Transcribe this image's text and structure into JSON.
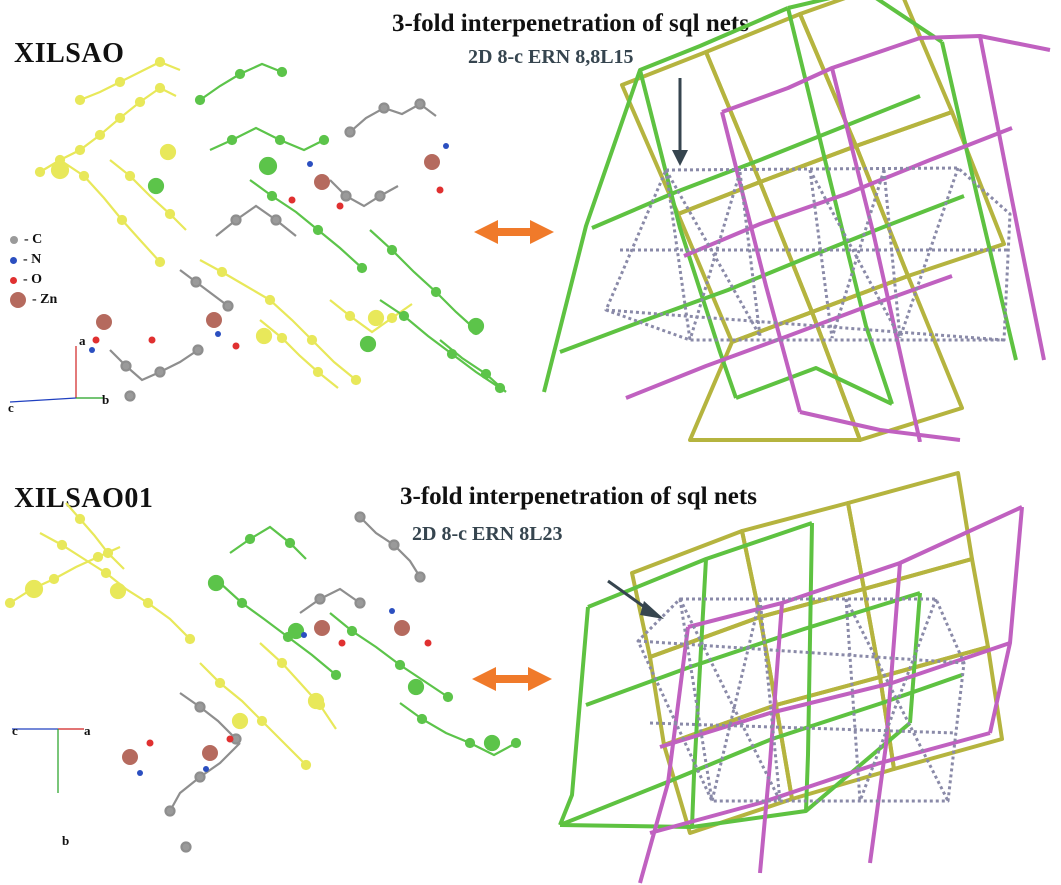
{
  "colors": {
    "net_green": "#5ec241",
    "net_olive": "#b5b43f",
    "net_magenta": "#c061c0",
    "ern_dotted": "#8a8aa8",
    "arrow_orange": "#f07a2a",
    "pointer": "#36454f",
    "carbon": "#9a9a9a",
    "nitrogen": "#2b4fc0",
    "oxygen": "#e03030",
    "zinc": "#b56a5e",
    "mol_yellow": "#e8e85a",
    "mol_green": "#5cc44a"
  },
  "top": {
    "code": "XILSAO",
    "heading": "3-fold interpenetration of sql nets",
    "subheading": "2D 8-c ERN 8,8L15",
    "axes": {
      "a": "a",
      "b": "b",
      "c": "c"
    },
    "legend": [
      {
        "label": "- C",
        "icon": "carbon-atom"
      },
      {
        "label": "- N",
        "icon": "nitrogen-atom"
      },
      {
        "label": "- O",
        "icon": "oxygen-atom"
      },
      {
        "label": "- Zn",
        "icon": "zinc-atom"
      }
    ]
  },
  "bottom": {
    "code": "XILSAO01",
    "heading": "3-fold interpenetration of sql nets",
    "subheading": "2D 8-c ERN 8L23",
    "axes": {
      "a": "a",
      "b": "b",
      "c": "c"
    }
  }
}
